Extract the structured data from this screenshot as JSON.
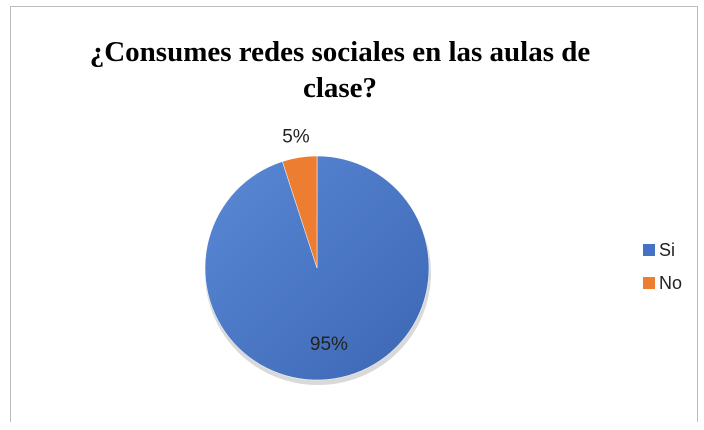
{
  "chart_data": {
    "type": "pie",
    "title": "¿Consumes redes sociales en las aulas de clase?",
    "categories": [
      "Si",
      "No"
    ],
    "values": [
      95,
      5
    ],
    "data_labels": [
      "95%",
      "5%"
    ],
    "colors": [
      "#4472C4",
      "#ED7D31"
    ],
    "legend_position": "right"
  }
}
